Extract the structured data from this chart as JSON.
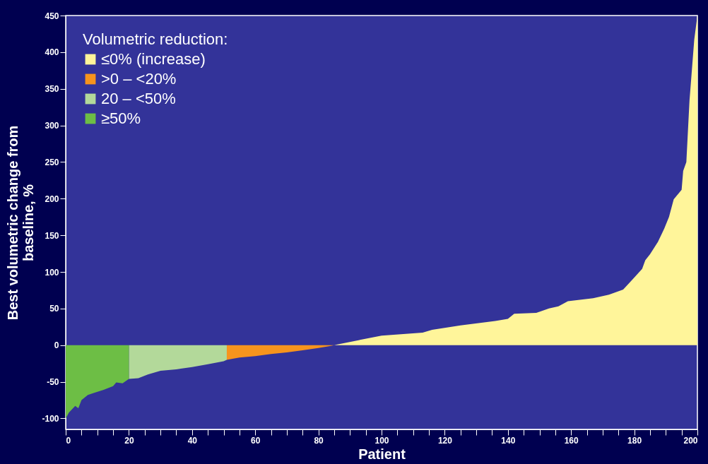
{
  "chart_data": {
    "type": "area",
    "xlabel": "Patient",
    "ylabel": "Best volumetric change from\nbaseline, %",
    "legend_title": "Volumetric reduction:",
    "legend": "top left",
    "grid": false,
    "xlim": [
      0,
      200
    ],
    "ylim": [
      -115,
      450
    ],
    "xticks": [
      0,
      {
        "value": 5,
        "label": null
      },
      {
        "value": 10,
        "label": null
      },
      {
        "value": 15,
        "label": null
      },
      20,
      {
        "value": 25,
        "label": null
      },
      {
        "value": 30,
        "label": null
      },
      {
        "value": 35,
        "label": null
      },
      40,
      {
        "value": 45,
        "label": null
      },
      {
        "value": 50,
        "label": null
      },
      {
        "value": 55,
        "label": null
      },
      60,
      {
        "value": 65,
        "label": null
      },
      {
        "value": 70,
        "label": null
      },
      {
        "value": 75,
        "label": null
      },
      80,
      {
        "value": 85,
        "label": null
      },
      {
        "value": 90,
        "label": null
      },
      {
        "value": 95,
        "label": null
      },
      100,
      {
        "value": 105,
        "label": null
      },
      {
        "value": 110,
        "label": null
      },
      {
        "value": 115,
        "label": null
      },
      120,
      {
        "value": 125,
        "label": null
      },
      {
        "value": 130,
        "label": null
      },
      {
        "value": 135,
        "label": null
      },
      140,
      {
        "value": 145,
        "label": null
      },
      {
        "value": 150,
        "label": null
      },
      {
        "value": 155,
        "label": null
      },
      160,
      {
        "value": 165,
        "label": null
      },
      {
        "value": 170,
        "label": null
      },
      {
        "value": 175,
        "label": null
      },
      180,
      {
        "value": 185,
        "label": null
      },
      {
        "value": 190,
        "label": null
      },
      {
        "value": 195,
        "label": null
      },
      200
    ],
    "yticks": [
      -100,
      -50,
      0,
      50,
      100,
      150,
      200,
      250,
      300,
      350,
      400,
      450
    ],
    "series": [
      {
        "name": "≤0% (increase)",
        "color": "#fff59a",
        "x": [
          85,
          86,
          100,
          113,
          116,
          125,
          136,
          140,
          142,
          149,
          153,
          156,
          159,
          167,
          172,
          176.5,
          179.5,
          182.5,
          183.5,
          185,
          187.5,
          189.5,
          191,
          192.5,
          195,
          195.5,
          196.5,
          197.5,
          199,
          200
        ],
        "values": [
          0,
          1,
          13,
          17,
          21,
          27,
          33,
          36,
          43,
          44,
          50,
          53,
          60,
          64,
          69,
          76,
          90,
          104,
          116,
          124,
          141,
          159,
          175,
          199,
          212,
          238,
          250,
          334,
          417,
          450
        ]
      },
      {
        "name": ">0 – <20%",
        "color": "#f7941d",
        "x": [
          51,
          55,
          60,
          65,
          70,
          75,
          80,
          84,
          85
        ],
        "values": [
          -20,
          -17,
          -15,
          -12,
          -10,
          -7,
          -4,
          -1,
          0
        ]
      },
      {
        "name": "20 – <50%",
        "color": "#b3d99a",
        "x": [
          20,
          23,
          26,
          30,
          35,
          40,
          45,
          50,
          51
        ],
        "values": [
          -46,
          -45,
          -40,
          -35,
          -33,
          -30,
          -26,
          -22,
          -20
        ]
      },
      {
        "name": "≥50%",
        "color": "#6dbe45",
        "x": [
          0,
          1,
          3,
          4,
          5,
          7,
          9,
          12,
          15,
          16,
          18,
          20
        ],
        "values": [
          -100,
          -92,
          -83,
          -86,
          -75,
          -68,
          -65,
          -61,
          -56,
          -51,
          -52,
          -46
        ]
      }
    ]
  }
}
